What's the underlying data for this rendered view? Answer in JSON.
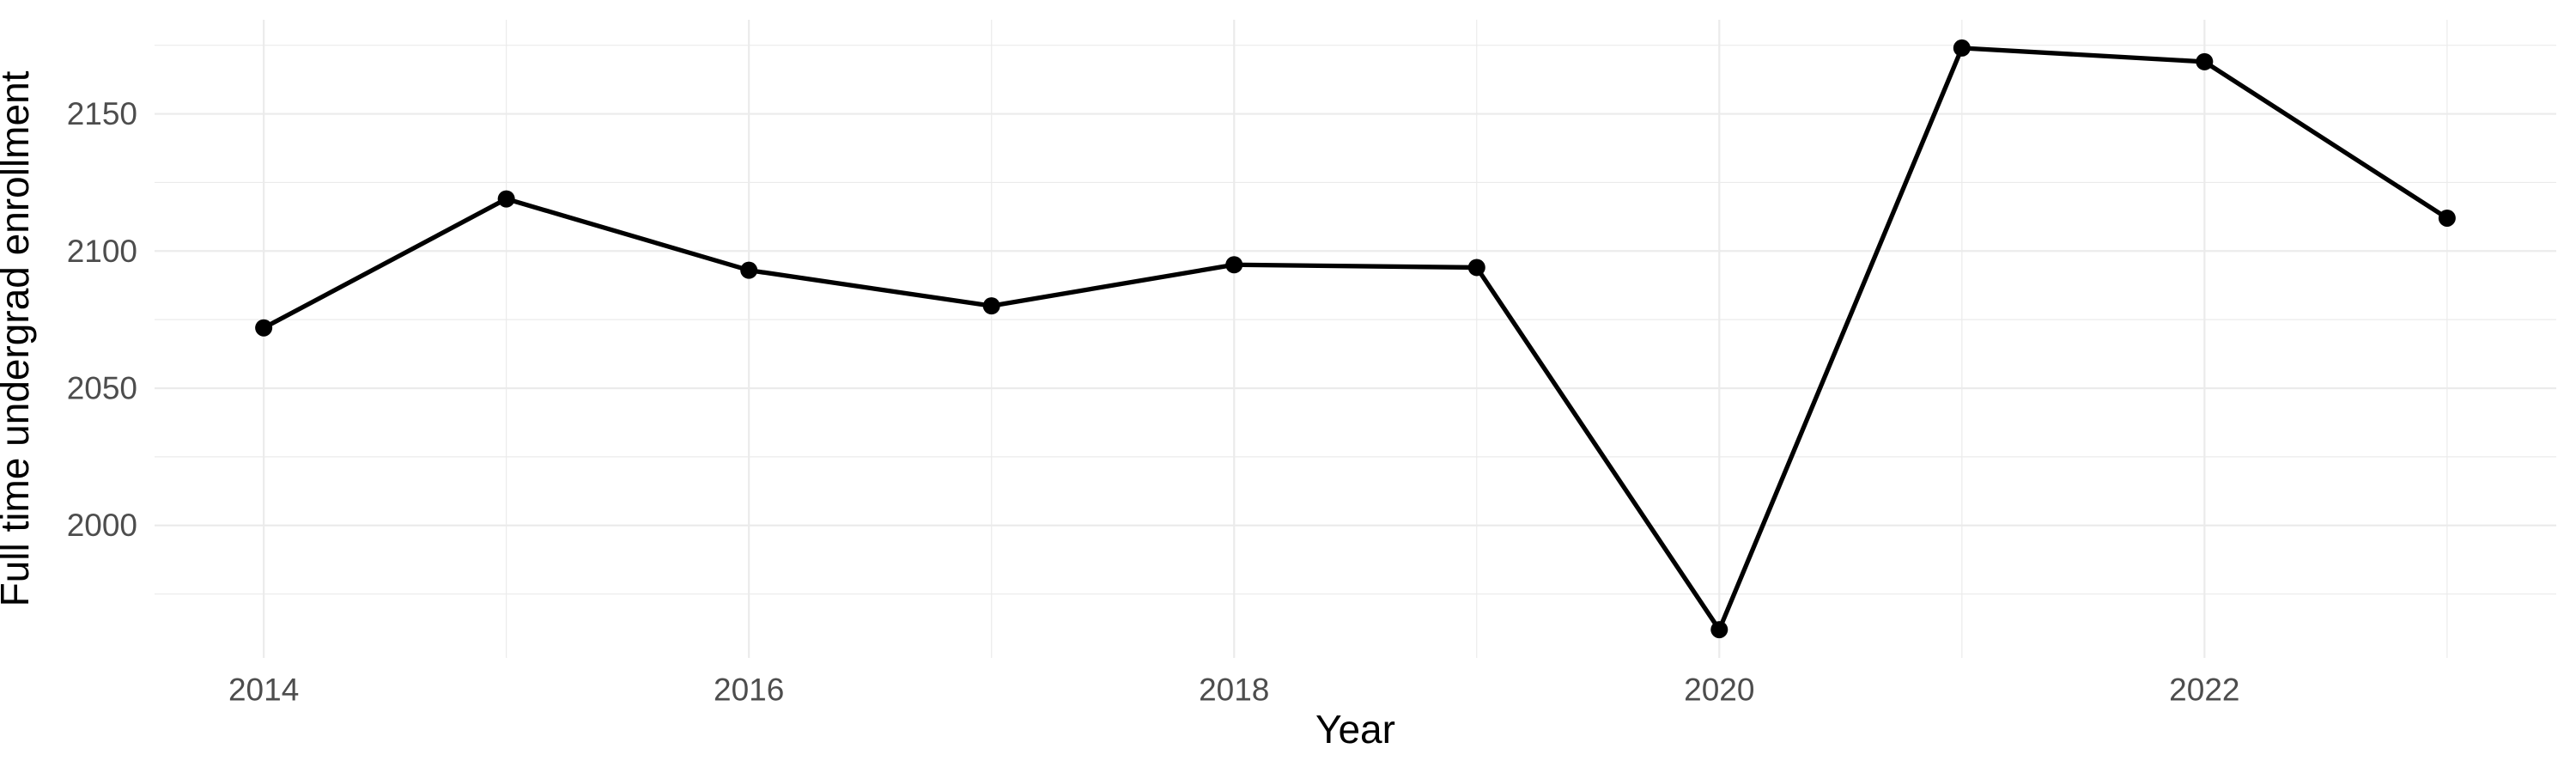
{
  "chart_data": {
    "type": "line",
    "title": "",
    "xlabel": "Year",
    "ylabel": "Full time undergrad enrollment",
    "x": [
      2014,
      2015,
      2016,
      2017,
      2018,
      2019,
      2020,
      2021,
      2022,
      2023
    ],
    "values": [
      2072,
      2119,
      2093,
      2080,
      2095,
      2094,
      1962,
      2174,
      2169,
      2112
    ],
    "x_axis": {
      "ticks_major": [
        2014,
        2016,
        2018,
        2020,
        2022
      ],
      "ticks_minor": [
        2015,
        2017,
        2019,
        2021,
        2023
      ],
      "tick_labels": [
        "2014",
        "2016",
        "2018",
        "2020",
        "2022"
      ],
      "range": [
        2013.55,
        2023.45
      ]
    },
    "y_axis": {
      "ticks_major": [
        2000,
        2050,
        2100,
        2150
      ],
      "ticks_minor": [
        1975,
        2025,
        2075,
        2125,
        2175
      ],
      "tick_labels": [
        "2000",
        "2050",
        "2100",
        "2150"
      ],
      "range": [
        1951.7,
        2184.3
      ]
    },
    "grid": true,
    "legend_position": "none",
    "marker": "circle",
    "colors": {
      "line": "#000000",
      "point": "#000000",
      "grid": "#EBEBEB",
      "tick_label": "#4D4D4D",
      "axis_title": "#000000",
      "background": "#FFFFFF"
    }
  }
}
